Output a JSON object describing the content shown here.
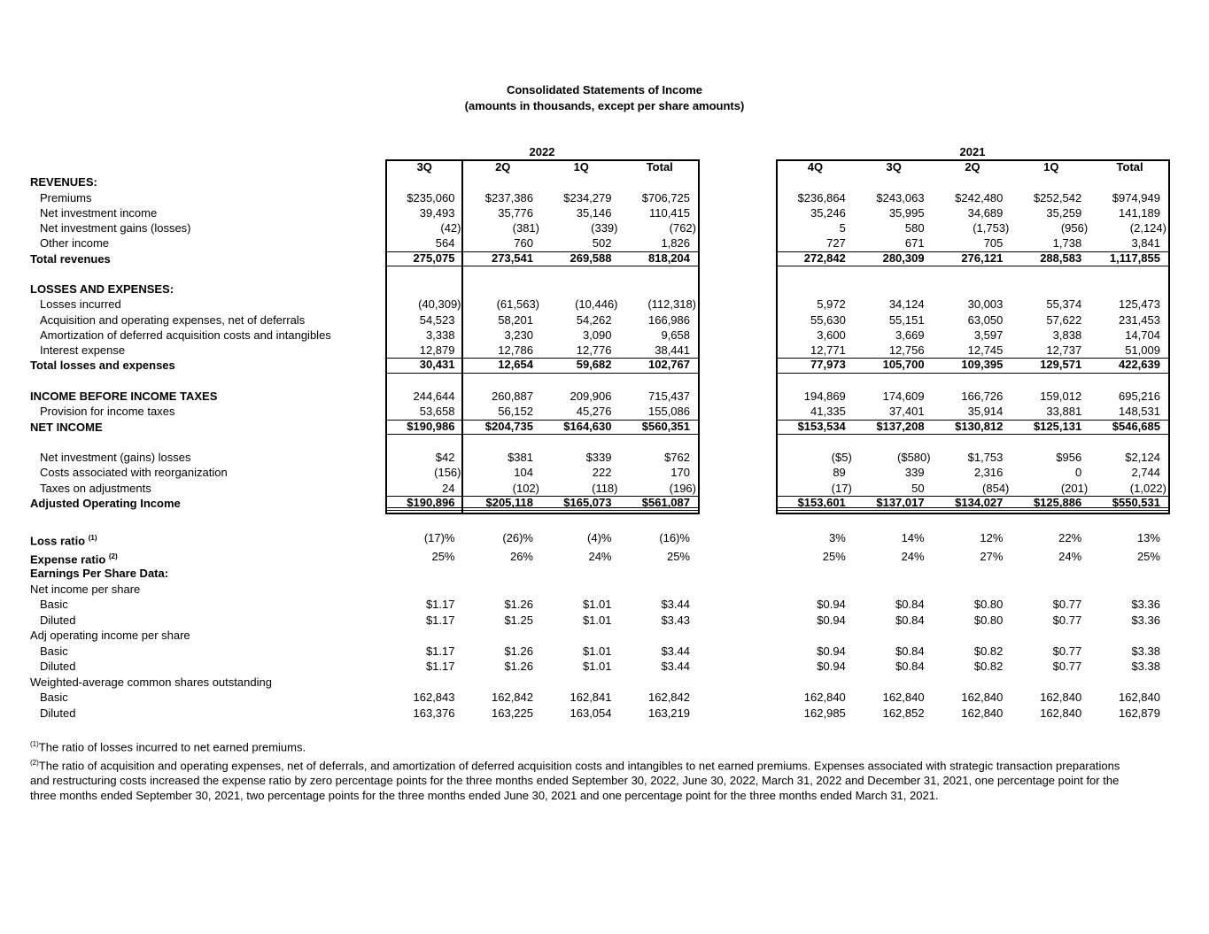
{
  "title": "Consolidated Statements of Income",
  "subtitle": "(amounts in thousands, except per share amounts)",
  "years": [
    "2022",
    "2021"
  ],
  "headers_2022": [
    "3Q",
    "2Q",
    "1Q",
    "Total"
  ],
  "headers_2021": [
    "4Q",
    "3Q",
    "2Q",
    "1Q",
    "Total"
  ],
  "rows": [
    {
      "label": "REVENUES:",
      "style": "head",
      "v22": [],
      "v21": []
    },
    {
      "label": "Premiums",
      "style": "ind",
      "v22": [
        "$235,060",
        "$237,386",
        "$234,279",
        "$706,725"
      ],
      "v21": [
        "$236,864",
        "$243,063",
        "$242,480",
        "$252,542",
        "$974,949"
      ]
    },
    {
      "label": "Net investment income",
      "style": "ind",
      "v22": [
        "39,493",
        "35,776",
        "35,146",
        "110,415"
      ],
      "v21": [
        "35,246",
        "35,995",
        "34,689",
        "35,259",
        "141,189"
      ]
    },
    {
      "label": "Net investment gains (losses)",
      "style": "ind",
      "v22": [
        "(42)",
        "(381)",
        "(339)",
        "(762)"
      ],
      "v21": [
        "5",
        "580",
        "(1,753)",
        "(956)",
        "(2,124)"
      ]
    },
    {
      "label": "Other income",
      "style": "ind",
      "v22": [
        "564",
        "760",
        "502",
        "1,826"
      ],
      "v21": [
        "727",
        "671",
        "705",
        "1,738",
        "3,841"
      ]
    },
    {
      "label": "Total revenues",
      "style": "total",
      "v22": [
        "275,075",
        "273,541",
        "269,588",
        "818,204"
      ],
      "v21": [
        "272,842",
        "280,309",
        "276,121",
        "288,583",
        "1,117,855"
      ]
    },
    {
      "label": "",
      "style": "blank",
      "v22": [],
      "v21": []
    },
    {
      "label": "LOSSES AND EXPENSES:",
      "style": "head",
      "v22": [],
      "v21": []
    },
    {
      "label": "Losses incurred",
      "style": "ind",
      "v22": [
        "(40,309)",
        "(61,563)",
        "(10,446)",
        "(112,318)"
      ],
      "v21": [
        "5,972",
        "34,124",
        "30,003",
        "55,374",
        "125,473"
      ]
    },
    {
      "label": "Acquisition and operating expenses, net of deferrals",
      "style": "ind",
      "v22": [
        "54,523",
        "58,201",
        "54,262",
        "166,986"
      ],
      "v21": [
        "55,630",
        "55,151",
        "63,050",
        "57,622",
        "231,453"
      ]
    },
    {
      "label": "Amortization of deferred acquisition costs and intangibles",
      "style": "ind",
      "v22": [
        "3,338",
        "3,230",
        "3,090",
        "9,658"
      ],
      "v21": [
        "3,600",
        "3,669",
        "3,597",
        "3,838",
        "14,704"
      ]
    },
    {
      "label": "Interest expense",
      "style": "ind",
      "v22": [
        "12,879",
        "12,786",
        "12,776",
        "38,441"
      ],
      "v21": [
        "12,771",
        "12,756",
        "12,745",
        "12,737",
        "51,009"
      ]
    },
    {
      "label": "Total losses and expenses",
      "style": "total",
      "v22": [
        "30,431",
        "12,654",
        "59,682",
        "102,767"
      ],
      "v21": [
        "77,973",
        "105,700",
        "109,395",
        "129,571",
        "422,639"
      ]
    },
    {
      "label": "",
      "style": "blank",
      "v22": [],
      "v21": []
    },
    {
      "label": "INCOME BEFORE INCOME TAXES",
      "style": "head",
      "v22": [
        "244,644",
        "260,887",
        "209,906",
        "715,437"
      ],
      "v21": [
        "194,869",
        "174,609",
        "166,726",
        "159,012",
        "695,216"
      ]
    },
    {
      "label": "Provision for income taxes",
      "style": "ind",
      "v22": [
        "53,658",
        "56,152",
        "45,276",
        "155,086"
      ],
      "v21": [
        "41,335",
        "37,401",
        "35,914",
        "33,881",
        "148,531"
      ]
    },
    {
      "label": "NET INCOME",
      "style": "total",
      "v22": [
        "$190,986",
        "$204,735",
        "$164,630",
        "$560,351"
      ],
      "v21": [
        "$153,534",
        "$137,208",
        "$130,812",
        "$125,131",
        "$546,685"
      ]
    },
    {
      "label": "",
      "style": "blank",
      "v22": [],
      "v21": []
    },
    {
      "label": "Net investment (gains) losses",
      "style": "ind",
      "v22": [
        "$42",
        "$381",
        "$339",
        "$762"
      ],
      "v21": [
        "($5)",
        "($580)",
        "$1,753",
        "$956",
        "$2,124"
      ]
    },
    {
      "label": "Costs associated with reorganization",
      "style": "ind",
      "v22": [
        "(156)",
        "104",
        "222",
        "170"
      ],
      "v21": [
        "89",
        "339",
        "2,316",
        "0",
        "2,744"
      ]
    },
    {
      "label": "Taxes on adjustments",
      "style": "ind",
      "v22": [
        "24",
        "(102)",
        "(118)",
        "(196)"
      ],
      "v21": [
        "(17)",
        "50",
        "(854)",
        "(201)",
        "(1,022)"
      ]
    },
    {
      "label": "Adjusted Operating Income",
      "style": "total adj",
      "v22": [
        "$190,896",
        "$205,118",
        "$165,073",
        "$561,087"
      ],
      "v21": [
        "$153,601",
        "$137,017",
        "$134,027",
        "$125,886",
        "$550,531"
      ]
    }
  ],
  "lower_rows": [
    {
      "label": "Loss ratio",
      "sup": "(1)",
      "style": "head rt",
      "v22": [
        "(17)%",
        "(26)%",
        "(4)%",
        "(16)%"
      ],
      "v21": [
        "3%",
        "14%",
        "12%",
        "22%",
        "13%"
      ]
    },
    {
      "label": "Expense ratio",
      "sup": "(2)",
      "style": "head rt",
      "v22": [
        "25%",
        "26%",
        "24%",
        "25%"
      ],
      "v21": [
        "25%",
        "24%",
        "27%",
        "24%",
        "25%"
      ]
    },
    {
      "label": "Earnings Per Share Data:",
      "sup": "",
      "style": "head",
      "v22": [],
      "v21": []
    },
    {
      "label": "Net income per share",
      "sup": "",
      "style": "",
      "v22": [],
      "v21": []
    },
    {
      "label": "Basic",
      "sup": "",
      "style": "ind",
      "v22": [
        "$1.17",
        "$1.26",
        "$1.01",
        "$3.44"
      ],
      "v21": [
        "$0.94",
        "$0.84",
        "$0.80",
        "$0.77",
        "$3.36"
      ]
    },
    {
      "label": "Diluted",
      "sup": "",
      "style": "ind",
      "v22": [
        "$1.17",
        "$1.25",
        "$1.01",
        "$3.43"
      ],
      "v21": [
        "$0.94",
        "$0.84",
        "$0.80",
        "$0.77",
        "$3.36"
      ]
    },
    {
      "label": "Adj operating income per share",
      "sup": "",
      "style": "",
      "v22": [],
      "v21": []
    },
    {
      "label": "Basic",
      "sup": "",
      "style": "ind",
      "v22": [
        "$1.17",
        "$1.26",
        "$1.01",
        "$3.44"
      ],
      "v21": [
        "$0.94",
        "$0.84",
        "$0.82",
        "$0.77",
        "$3.38"
      ]
    },
    {
      "label": "Diluted",
      "sup": "",
      "style": "ind",
      "v22": [
        "$1.17",
        "$1.26",
        "$1.01",
        "$3.44"
      ],
      "v21": [
        "$0.94",
        "$0.84",
        "$0.82",
        "$0.77",
        "$3.38"
      ]
    },
    {
      "label": "Weighted-average common shares outstanding",
      "sup": "",
      "style": "",
      "v22": [],
      "v21": []
    },
    {
      "label": "Basic",
      "sup": "",
      "style": "ind",
      "v22": [
        "162,843",
        "162,842",
        "162,841",
        "162,842"
      ],
      "v21": [
        "162,840",
        "162,840",
        "162,840",
        "162,840",
        "162,840"
      ]
    },
    {
      "label": "Diluted",
      "sup": "",
      "style": "ind",
      "v22": [
        "163,376",
        "163,225",
        "163,054",
        "163,219"
      ],
      "v21": [
        "162,985",
        "162,852",
        "162,840",
        "162,840",
        "162,879"
      ]
    }
  ],
  "footnotes": [
    {
      "mark": "(1)",
      "text": "The ratio of losses incurred to net earned premiums."
    },
    {
      "mark": "(2)",
      "text": "The ratio of acquisition and operating expenses, net of deferrals, and amortization of deferred acquisition costs and intangibles to net earned premiums. Expenses associated with strategic transaction preparations and restructuring costs increased the expense ratio by zero percentage points for the three months ended September 30, 2022, June 30, 2022, March 31, 2022 and December 31, 2021, one percentage point for the three months ended September 30, 2021, two percentage points for the three months ended June 30, 2021 and one percentage point for the three months ended March 31, 2021."
    }
  ]
}
